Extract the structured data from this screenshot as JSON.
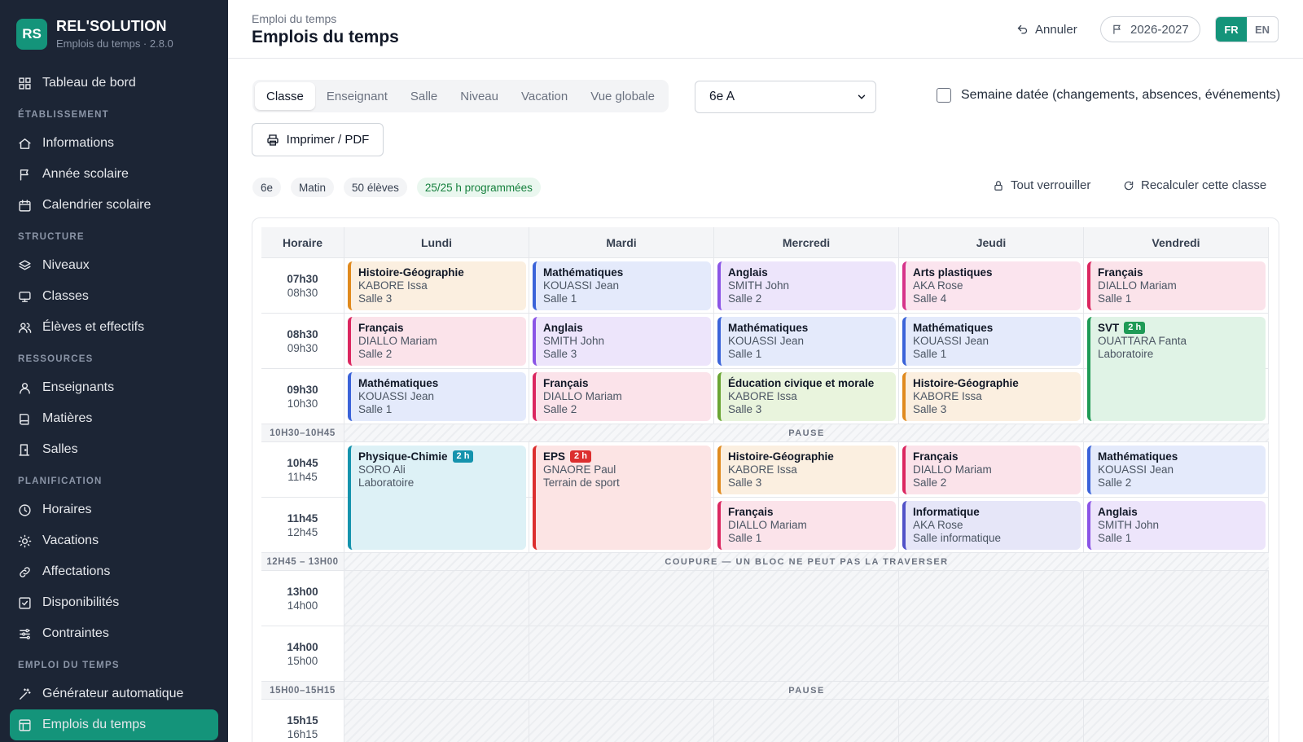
{
  "brand": {
    "logo": "RS",
    "name": "REL'SOLUTION",
    "subtitle": "Emplois du temps · 2.8.0"
  },
  "sidebar": {
    "dashboard": "Tableau de bord",
    "sections": [
      {
        "title": "ÉTABLISSEMENT",
        "items": [
          {
            "label": "Informations",
            "icon": "home-icon"
          },
          {
            "label": "Année scolaire",
            "icon": "flag-icon"
          },
          {
            "label": "Calendrier scolaire",
            "icon": "calendar-icon"
          }
        ]
      },
      {
        "title": "STRUCTURE",
        "items": [
          {
            "label": "Niveaux",
            "icon": "layers-icon"
          },
          {
            "label": "Classes",
            "icon": "monitor-icon"
          },
          {
            "label": "Élèves et effectifs",
            "icon": "users-icon"
          }
        ]
      },
      {
        "title": "RESSOURCES",
        "items": [
          {
            "label": "Enseignants",
            "icon": "user-icon"
          },
          {
            "label": "Matières",
            "icon": "book-icon"
          },
          {
            "label": "Salles",
            "icon": "door-icon"
          }
        ]
      },
      {
        "title": "PLANIFICATION",
        "items": [
          {
            "label": "Horaires",
            "icon": "clock-icon"
          },
          {
            "label": "Vacations",
            "icon": "sun-icon"
          },
          {
            "label": "Affectations",
            "icon": "link-icon"
          },
          {
            "label": "Disponibilités",
            "icon": "check-square-icon"
          },
          {
            "label": "Contraintes",
            "icon": "sliders-icon"
          }
        ]
      },
      {
        "title": "EMPLOI DU TEMPS",
        "items": [
          {
            "label": "Générateur automatique",
            "icon": "wand-icon"
          },
          {
            "label": "Emplois du temps",
            "icon": "grid-icon",
            "active": true
          }
        ]
      }
    ]
  },
  "header": {
    "breadcrumb": "Emploi du temps",
    "title": "Emplois du temps",
    "undo": "Annuler",
    "year": "2026-2027",
    "lang": [
      "FR",
      "EN"
    ],
    "lang_active": "FR"
  },
  "toolbar": {
    "tabs": [
      "Classe",
      "Enseignant",
      "Salle",
      "Niveau",
      "Vacation",
      "Vue globale"
    ],
    "active_tab": "Classe",
    "class_select": "6e A",
    "dated_week": "Semaine datée (changements, absences, événements)",
    "print": "Imprimer / PDF"
  },
  "summary": {
    "chips": [
      "6e",
      "Matin",
      "50 élèves"
    ],
    "hours": "25/25 h programmées",
    "lock_all": "Tout verrouiller",
    "recalc": "Recalculer cette classe"
  },
  "grid": {
    "time_header": "Horaire",
    "days": [
      "Lundi",
      "Mardi",
      "Mercredi",
      "Jeudi",
      "Vendredi"
    ],
    "slots": [
      {
        "start": "07h30",
        "end": "08h30"
      },
      {
        "start": "08h30",
        "end": "09h30"
      },
      {
        "start": "09h30",
        "end": "10h30"
      },
      {
        "start": "10h45",
        "end": "11h45"
      },
      {
        "start": "11h45",
        "end": "12h45"
      },
      {
        "start": "13h00",
        "end": "14h00"
      },
      {
        "start": "14h00",
        "end": "15h00"
      },
      {
        "start": "15h15",
        "end": "16h15"
      }
    ],
    "breaks": [
      {
        "time": "10H30–10H45",
        "label": "PAUSE"
      },
      {
        "time": "12H45 – 13H00",
        "label": "COUPURE — UN BLOC NE PEUT PAS LA TRAVERSER"
      },
      {
        "time": "15H00–15H15",
        "label": "PAUSE"
      }
    ],
    "lessons": [
      {
        "day": 0,
        "slot": 0,
        "span": 1,
        "subject": "Histoire-Géographie",
        "teacher": "KABORE Issa",
        "room": "Salle 3",
        "color": "hg"
      },
      {
        "day": 0,
        "slot": 1,
        "span": 1,
        "subject": "Français",
        "teacher": "DIALLO Mariam",
        "room": "Salle 2",
        "color": "fr"
      },
      {
        "day": 0,
        "slot": 2,
        "span": 1,
        "subject": "Mathématiques",
        "teacher": "KOUASSI Jean",
        "room": "Salle 1",
        "color": "ma"
      },
      {
        "day": 0,
        "slot": 3,
        "span": 2,
        "subject": "Physique-Chimie",
        "badge": "2 h",
        "badge_color": "#1593ad",
        "teacher": "SORO Ali",
        "room": "Laboratoire",
        "color": "pc"
      },
      {
        "day": 1,
        "slot": 0,
        "span": 1,
        "subject": "Mathématiques",
        "teacher": "KOUASSI Jean",
        "room": "Salle 1",
        "color": "ma"
      },
      {
        "day": 1,
        "slot": 1,
        "span": 1,
        "subject": "Anglais",
        "teacher": "SMITH John",
        "room": "Salle 3",
        "color": "an"
      },
      {
        "day": 1,
        "slot": 2,
        "span": 1,
        "subject": "Français",
        "teacher": "DIALLO Mariam",
        "room": "Salle 2",
        "color": "fr"
      },
      {
        "day": 1,
        "slot": 3,
        "span": 2,
        "subject": "EPS",
        "badge": "2 h",
        "badge_color": "#dc2f2f",
        "teacher": "GNAORE Paul",
        "room": "Terrain de sport",
        "color": "eps"
      },
      {
        "day": 2,
        "slot": 0,
        "span": 1,
        "subject": "Anglais",
        "teacher": "SMITH John",
        "room": "Salle 2",
        "color": "an"
      },
      {
        "day": 2,
        "slot": 1,
        "span": 1,
        "subject": "Mathématiques",
        "teacher": "KOUASSI Jean",
        "room": "Salle 1",
        "color": "ma"
      },
      {
        "day": 2,
        "slot": 2,
        "span": 1,
        "subject": "Éducation civique et morale",
        "teacher": "KABORE Issa",
        "room": "Salle 3",
        "color": "ec"
      },
      {
        "day": 2,
        "slot": 3,
        "span": 1,
        "subject": "Histoire-Géographie",
        "teacher": "KABORE Issa",
        "room": "Salle 3",
        "color": "hg"
      },
      {
        "day": 2,
        "slot": 4,
        "span": 1,
        "subject": "Français",
        "teacher": "DIALLO Mariam",
        "room": "Salle 1",
        "color": "fr"
      },
      {
        "day": 3,
        "slot": 0,
        "span": 1,
        "subject": "Arts plastiques",
        "teacher": "AKA Rose",
        "room": "Salle 4",
        "color": "ap"
      },
      {
        "day": 3,
        "slot": 1,
        "span": 1,
        "subject": "Mathématiques",
        "teacher": "KOUASSI Jean",
        "room": "Salle 1",
        "color": "ma"
      },
      {
        "day": 3,
        "slot": 2,
        "span": 1,
        "subject": "Histoire-Géographie",
        "teacher": "KABORE Issa",
        "room": "Salle 3",
        "color": "hg"
      },
      {
        "day": 3,
        "slot": 3,
        "span": 1,
        "subject": "Français",
        "teacher": "DIALLO Mariam",
        "room": "Salle 2",
        "color": "fr"
      },
      {
        "day": 3,
        "slot": 4,
        "span": 1,
        "subject": "Informatique",
        "teacher": "AKA Rose",
        "room": "Salle informatique",
        "color": "inf"
      },
      {
        "day": 4,
        "slot": 0,
        "span": 1,
        "subject": "Français",
        "teacher": "DIALLO Mariam",
        "room": "Salle 1",
        "color": "fr"
      },
      {
        "day": 4,
        "slot": 1,
        "span": 2,
        "subject": "SVT",
        "badge": "2 h",
        "badge_color": "#1f9b56",
        "teacher": "OUATTARA Fanta",
        "room": "Laboratoire",
        "color": "svt"
      },
      {
        "day": 4,
        "slot": 3,
        "span": 1,
        "subject": "Mathématiques",
        "teacher": "KOUASSI Jean",
        "room": "Salle 2",
        "color": "ma"
      },
      {
        "day": 4,
        "slot": 4,
        "span": 1,
        "subject": "Anglais",
        "teacher": "SMITH John",
        "room": "Salle 1",
        "color": "an"
      }
    ]
  }
}
